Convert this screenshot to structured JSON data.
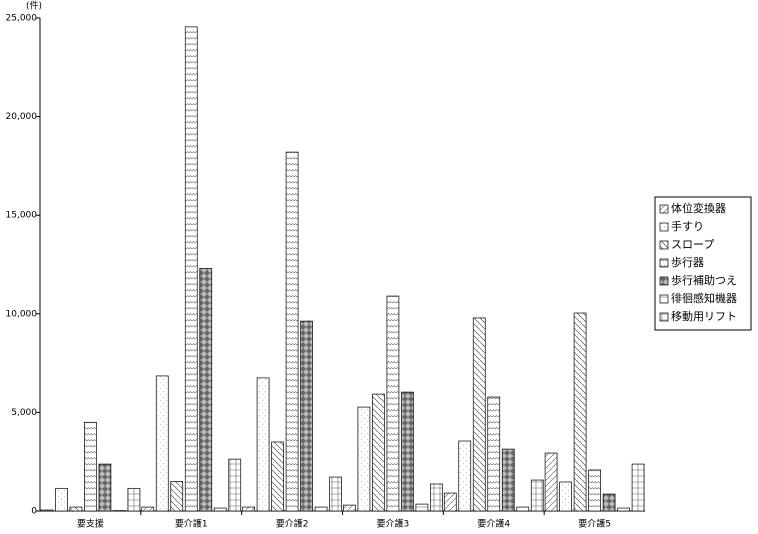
{
  "chart_data": {
    "type": "bar",
    "y_unit": "(件)",
    "categories": [
      "要支援",
      "要介護1",
      "要介護2",
      "要介護3",
      "要介護4",
      "要介護5"
    ],
    "series": [
      {
        "name": "体位変換器",
        "color": "#555555",
        "values": [
          50,
          200,
          200,
          300,
          910,
          2940
        ]
      },
      {
        "name": "手すり",
        "color": "#777777",
        "values": [
          1150,
          6850,
          6750,
          5270,
          3550,
          1470
        ]
      },
      {
        "name": "スロープ",
        "color": "#555555",
        "values": [
          200,
          1500,
          3500,
          5930,
          9790,
          10040
        ]
      },
      {
        "name": "歩行器",
        "color": "#666666",
        "values": [
          4500,
          24550,
          18200,
          10900,
          5780,
          2080
        ]
      },
      {
        "name": "歩行補助つえ",
        "color": "#666666",
        "values": [
          2380,
          12300,
          9630,
          6030,
          3140,
          860
        ]
      },
      {
        "name": "徘徊感知機器",
        "color": "#555555",
        "values": [
          20,
          150,
          200,
          350,
          200,
          150
        ]
      },
      {
        "name": "移動用リフト",
        "color": "#666666",
        "values": [
          1150,
          2630,
          1720,
          1370,
          1570,
          2380
        ]
      }
    ],
    "ylim": [
      0,
      25000
    ],
    "yticks": [
      0,
      {
        "value": 5000,
        "label": "5,000"
      },
      {
        "value": 10000,
        "label": "10,000"
      },
      {
        "value": 15000,
        "label": "15,000"
      },
      {
        "value": 20000,
        "label": "20,000"
      },
      {
        "value": 25000,
        "label": "25,000"
      }
    ],
    "legend": "right"
  }
}
